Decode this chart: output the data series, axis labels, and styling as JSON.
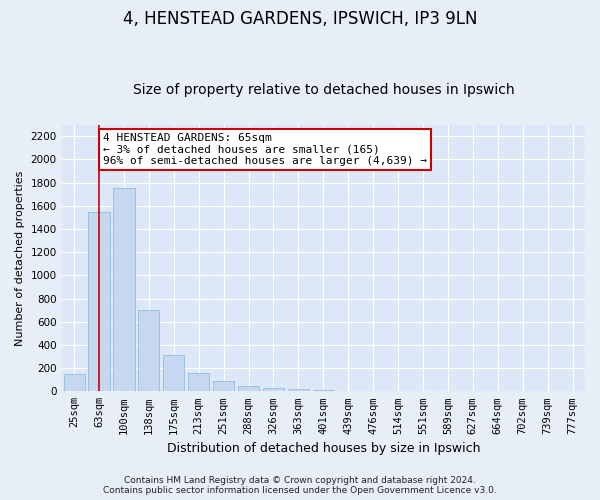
{
  "title": "4, HENSTEAD GARDENS, IPSWICH, IP3 9LN",
  "subtitle": "Size of property relative to detached houses in Ipswich",
  "xlabel": "Distribution of detached houses by size in Ipswich",
  "ylabel": "Number of detached properties",
  "bar_categories": [
    "25sqm",
    "63sqm",
    "100sqm",
    "138sqm",
    "175sqm",
    "213sqm",
    "251sqm",
    "288sqm",
    "326sqm",
    "363sqm",
    "401sqm",
    "439sqm",
    "476sqm",
    "514sqm",
    "551sqm",
    "589sqm",
    "627sqm",
    "664sqm",
    "702sqm",
    "739sqm",
    "777sqm"
  ],
  "bar_values": [
    150,
    1550,
    1750,
    700,
    315,
    160,
    90,
    45,
    28,
    18,
    12,
    0,
    0,
    0,
    0,
    0,
    0,
    0,
    0,
    0,
    0
  ],
  "bar_color": "#c5d8f0",
  "bar_edgecolor": "#8ab4d8",
  "vline_x_index": 1,
  "vline_color": "#cc0000",
  "ylim": [
    0,
    2300
  ],
  "yticks": [
    0,
    200,
    400,
    600,
    800,
    1000,
    1200,
    1400,
    1600,
    1800,
    2000,
    2200
  ],
  "annotation_text": "4 HENSTEAD GARDENS: 65sqm\n← 3% of detached houses are smaller (165)\n96% of semi-detached houses are larger (4,639) →",
  "annotation_box_facecolor": "#ffffff",
  "annotation_box_edgecolor": "#cc0000",
  "footer_line1": "Contains HM Land Registry data © Crown copyright and database right 2024.",
  "footer_line2": "Contains public sector information licensed under the Open Government Licence v3.0.",
  "fig_bg_color": "#e8eef8",
  "axes_bg_color": "#dce8f8",
  "grid_color": "#ffffff",
  "title_fontsize": 12,
  "subtitle_fontsize": 10,
  "ylabel_fontsize": 8,
  "xlabel_fontsize": 9,
  "tick_fontsize": 7.5,
  "annotation_fontsize": 8,
  "footer_fontsize": 6.5
}
